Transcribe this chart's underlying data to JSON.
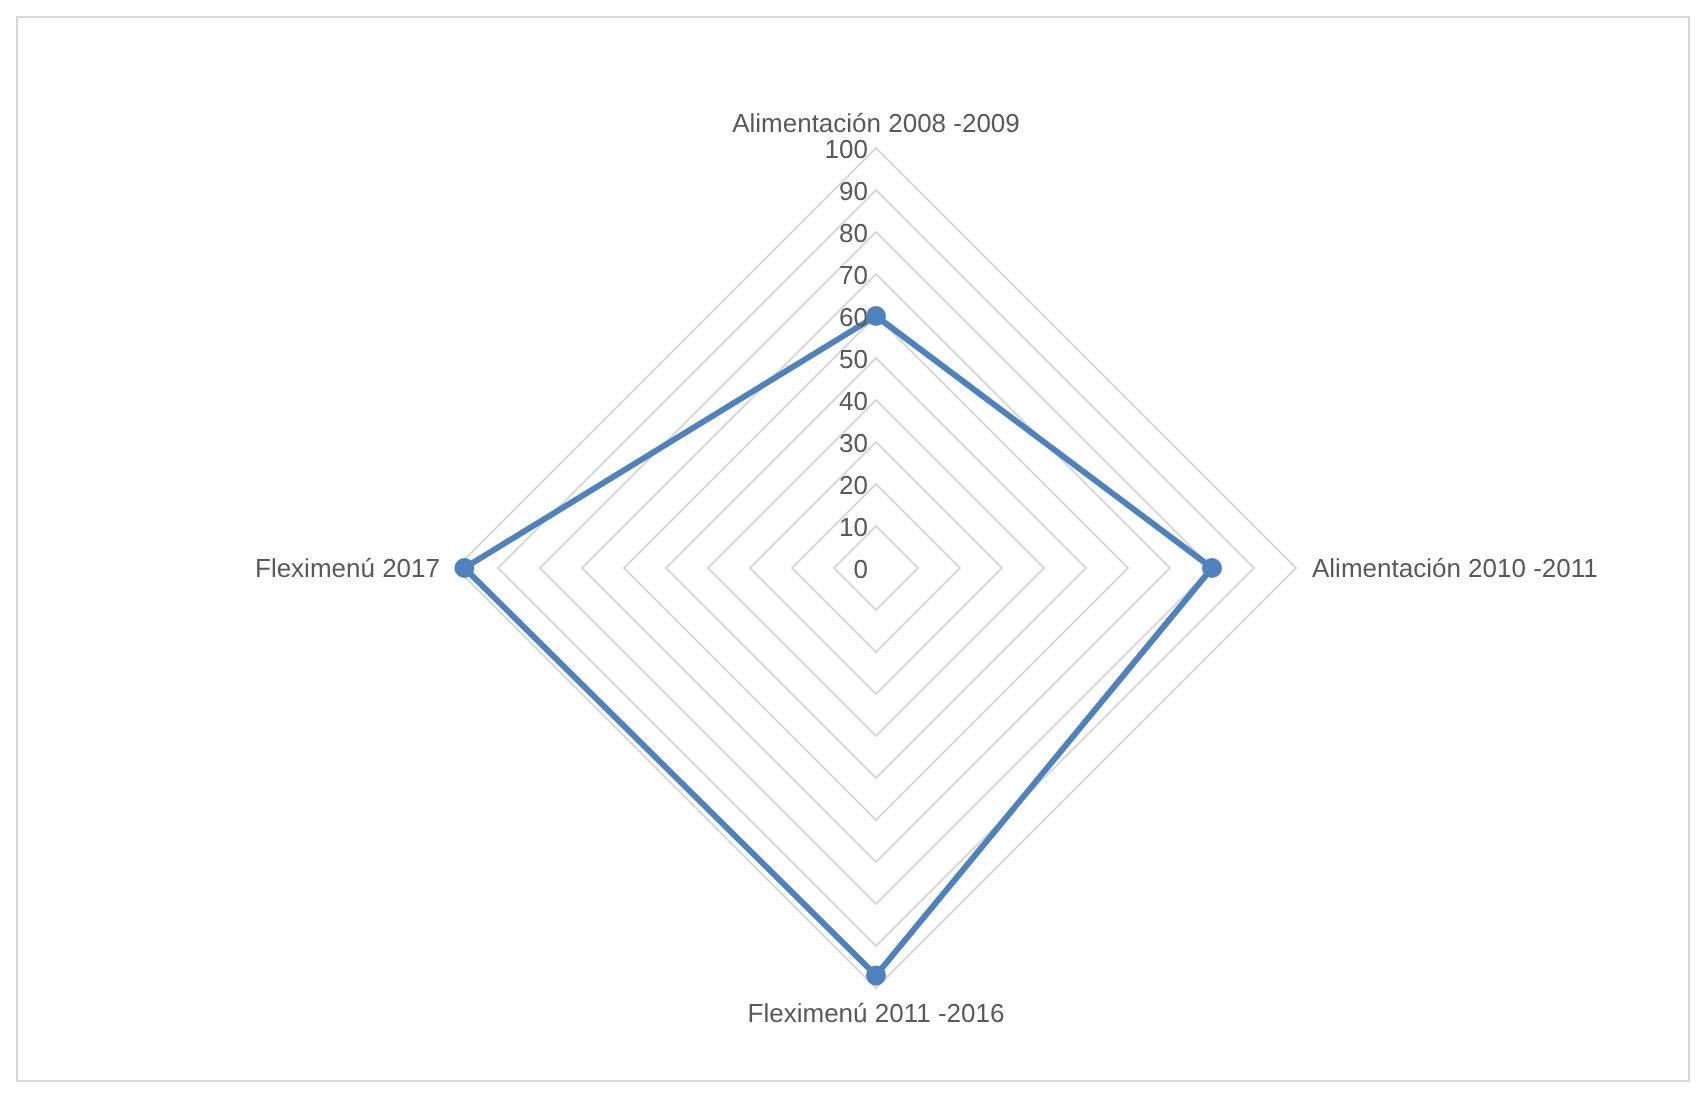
{
  "chart_data": {
    "type": "radar",
    "categories": [
      "Alimentación 2008  -2009",
      "Alimentación  2010  -2011",
      "Fleximenú 2011  -2016",
      "Fleximenú 2017"
    ],
    "series": [
      {
        "color": "#4f81bd",
        "values": [
          60,
          80,
          97,
          98
        ]
      }
    ],
    "ylim": [
      0,
      100
    ],
    "yticks": [
      0,
      10,
      20,
      30,
      40,
      50,
      60,
      70,
      80,
      90,
      100
    ],
    "grid": true,
    "marker": "circle"
  }
}
